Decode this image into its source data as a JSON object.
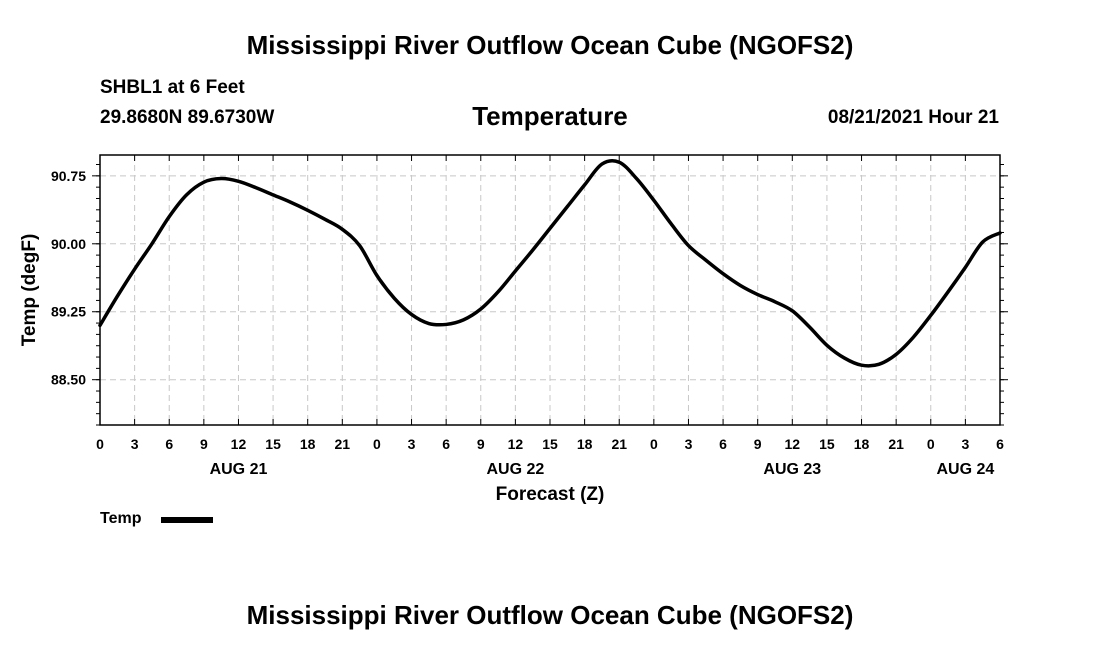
{
  "header": {
    "main_title": "Mississippi River Outflow Ocean Cube (NGOFS2)",
    "station": "SHBL1 at 6 Feet",
    "coordinates": "29.8680N  89.6730W",
    "plot_title": "Temperature",
    "datetime": "08/21/2021 Hour 21"
  },
  "footer": {
    "title": "Mississippi River Outflow Ocean Cube (NGOFS2)"
  },
  "legend": {
    "label": "Temp"
  },
  "chart_data": {
    "type": "line",
    "title": "Temperature",
    "xlabel": "Forecast (Z)",
    "ylabel": "Temp (degF)",
    "xlim": [
      0,
      78
    ],
    "ylim": [
      88.0,
      90.98
    ],
    "yticks": [
      88.5,
      89.25,
      90.0,
      90.75
    ],
    "ytick_labels": [
      "88.50",
      "89.25",
      "90.00",
      "90.75"
    ],
    "xtick_labels": [
      "0",
      "3",
      "6",
      "9",
      "12",
      "15",
      "18",
      "21",
      "0",
      "3",
      "6",
      "9",
      "12",
      "15",
      "18",
      "21",
      "0",
      "3",
      "6",
      "9",
      "12",
      "15",
      "18",
      "21",
      "0",
      "3",
      "6"
    ],
    "day_labels": [
      {
        "x": 12,
        "label": "AUG 21"
      },
      {
        "x": 36,
        "label": "AUG 22"
      },
      {
        "x": 60,
        "label": "AUG 23"
      },
      {
        "x": 75,
        "label": "AUG 24"
      }
    ],
    "grid": true,
    "legend_position": "bottom-left",
    "series": [
      {
        "name": "Temp",
        "color": "#000000",
        "x": [
          0,
          1.5,
          3,
          4.5,
          6,
          7.5,
          9,
          10.5,
          12,
          13.5,
          15,
          16.5,
          18,
          19.5,
          21,
          22.5,
          24,
          25.5,
          27,
          28.5,
          30,
          31.5,
          33,
          34.5,
          36,
          37.5,
          39,
          40.5,
          42,
          43.5,
          45,
          46.5,
          48,
          49.5,
          51,
          52.5,
          54,
          55.5,
          57,
          58.5,
          60,
          61.5,
          63,
          64.5,
          66,
          67.5,
          69,
          70.5,
          72,
          73.5,
          75,
          76.5,
          78
        ],
        "y": [
          89.1,
          89.42,
          89.72,
          90.0,
          90.3,
          90.54,
          90.68,
          90.72,
          90.69,
          90.62,
          90.54,
          90.46,
          90.37,
          90.27,
          90.16,
          89.98,
          89.65,
          89.4,
          89.22,
          89.12,
          89.11,
          89.16,
          89.28,
          89.47,
          89.7,
          89.93,
          90.17,
          90.41,
          90.65,
          90.88,
          90.9,
          90.72,
          90.48,
          90.22,
          89.98,
          89.82,
          89.67,
          89.54,
          89.44,
          89.36,
          89.26,
          89.08,
          88.88,
          88.74,
          88.66,
          88.67,
          88.78,
          88.97,
          89.21,
          89.47,
          89.74,
          90.02,
          90.12
        ]
      }
    ]
  }
}
